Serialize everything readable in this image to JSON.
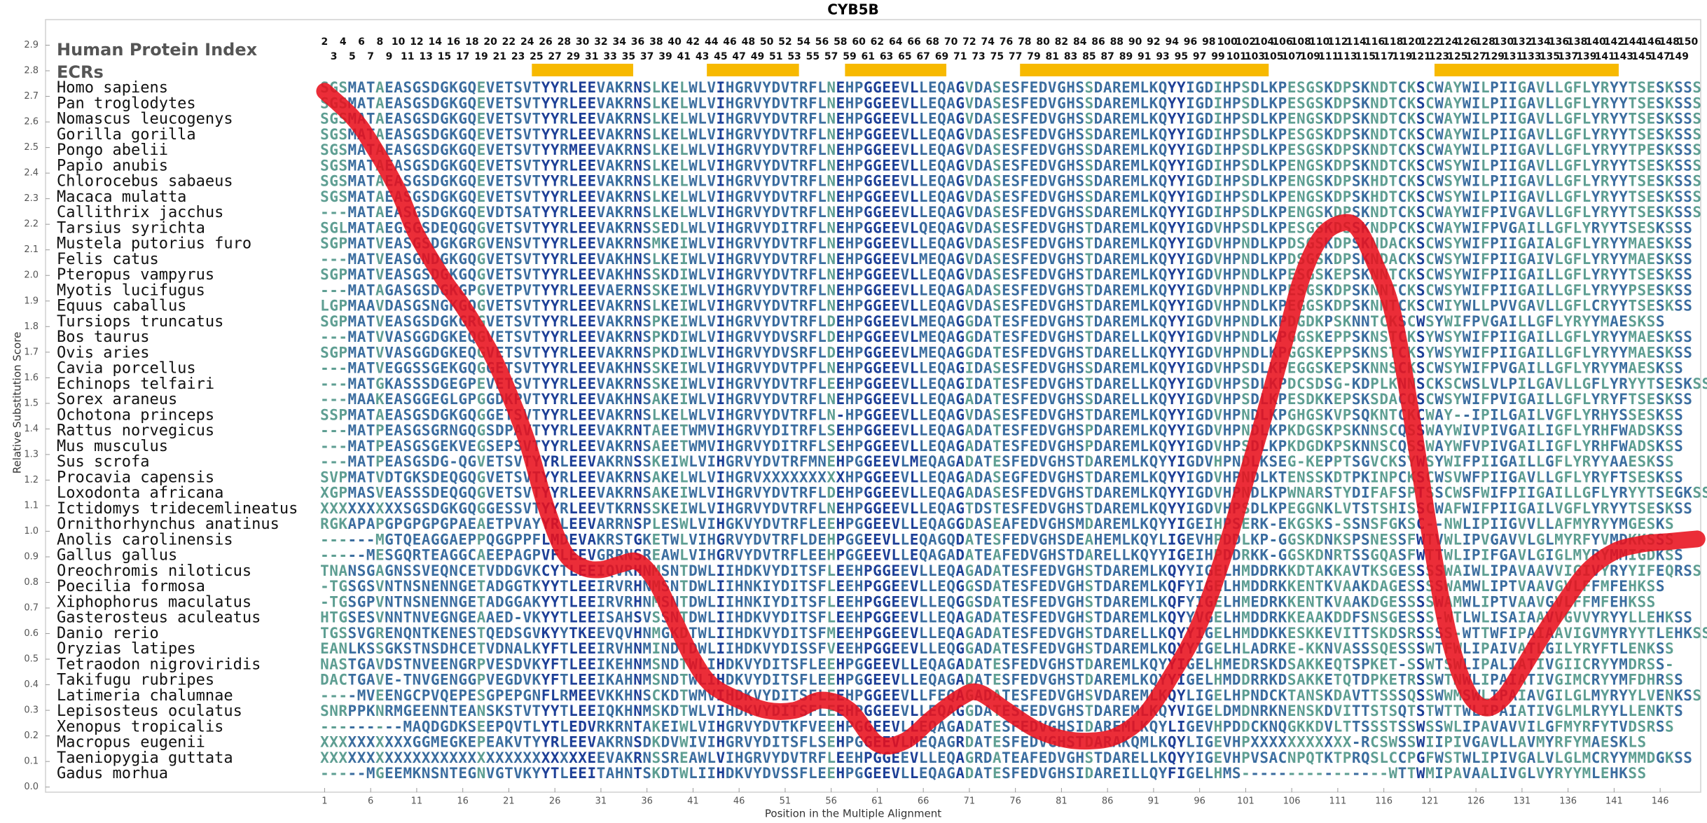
{
  "chart_data": {
    "type": "line",
    "title": "CYB5B",
    "xlabel": "Position in the Multiple Alignment",
    "ylabel": "Relative Substitution Score",
    "color": "#e8101c",
    "x": [
      1,
      4,
      6,
      9,
      11,
      14,
      16,
      19,
      21,
      23,
      25,
      27,
      29,
      31,
      33,
      35,
      37,
      39,
      41,
      43,
      46,
      49,
      52,
      55,
      58,
      61,
      64,
      67,
      70,
      72,
      75,
      78,
      81,
      84,
      87,
      90,
      93,
      96,
      99,
      101,
      103,
      105,
      107,
      109,
      111,
      113,
      115,
      117,
      119,
      121,
      123,
      125,
      127,
      129,
      131,
      133,
      135,
      138,
      141,
      144,
      147,
      150
    ],
    "values": [
      2.72,
      2.62,
      2.52,
      2.33,
      2.16,
      1.98,
      1.88,
      1.7,
      1.54,
      1.35,
      1.1,
      0.92,
      0.86,
      0.85,
      0.87,
      0.88,
      0.8,
      0.65,
      0.5,
      0.4,
      0.34,
      0.3,
      0.3,
      0.34,
      0.3,
      0.17,
      0.18,
      0.27,
      0.35,
      0.37,
      0.3,
      0.23,
      0.19,
      0.18,
      0.2,
      0.28,
      0.44,
      0.64,
      0.95,
      1.2,
      1.45,
      1.71,
      1.98,
      2.14,
      2.2,
      2.19,
      2.05,
      1.85,
      1.45,
      0.99,
      0.6,
      0.38,
      0.31,
      0.35,
      0.46,
      0.58,
      0.69,
      0.84,
      0.92,
      0.95,
      0.96,
      0.97
    ],
    "xlim": [
      -29.3,
      150.4
    ],
    "ylim": [
      -0.02,
      3.0
    ],
    "xticks": [
      1,
      6,
      11,
      16,
      21,
      26,
      31,
      36,
      41,
      46,
      51,
      56,
      61,
      66,
      71,
      76,
      81,
      86,
      91,
      96,
      101,
      106,
      111,
      116,
      121,
      126,
      131,
      136,
      141,
      146
    ],
    "yticks": [
      {
        "value": 0,
        "label": "0.0"
      },
      0.1,
      0.2,
      0.3,
      0.4,
      0.5,
      0.6,
      0.7,
      0.8,
      0.9,
      {
        "value": 1,
        "label": "1.0"
      },
      1.1,
      1.2,
      1.3,
      1.4,
      1.5,
      1.6,
      1.7,
      1.8,
      1.9,
      {
        "value": 2,
        "label": "2.0"
      },
      2.1,
      2.2,
      2.3,
      2.4,
      2.5,
      2.6,
      2.7,
      2.8,
      2.9
    ],
    "alignment": {
      "index_title": "Human Protein Index",
      "ecr_title": "ECRs",
      "ecr_color": "#f7b900",
      "ecrs": [
        [
          24,
          34
        ],
        [
          43,
          52
        ],
        [
          58,
          68
        ],
        [
          77,
          103
        ],
        [
          122,
          141
        ]
      ],
      "human_index_top": [
        2,
        4,
        6,
        8,
        10,
        12,
        14,
        16,
        18,
        20,
        22,
        24,
        26,
        28,
        30,
        32,
        34,
        36,
        38,
        40,
        42,
        44,
        46,
        48,
        50,
        52,
        54,
        56,
        58,
        60,
        62,
        64,
        66,
        68,
        70,
        72,
        74,
        76,
        78,
        80,
        82,
        84,
        86,
        88,
        90,
        92,
        94,
        96,
        98,
        100,
        102,
        104,
        106,
        108,
        110,
        112,
        114,
        116,
        118,
        120,
        122,
        124,
        126,
        128,
        130,
        132,
        134,
        136,
        138,
        140,
        142,
        144,
        146,
        148,
        150
      ],
      "human_index_bottom": [
        3,
        5,
        7,
        9,
        11,
        13,
        15,
        17,
        19,
        21,
        23,
        25,
        27,
        29,
        31,
        33,
        35,
        37,
        39,
        41,
        43,
        45,
        47,
        49,
        51,
        53,
        55,
        57,
        59,
        61,
        63,
        65,
        67,
        69,
        71,
        73,
        75,
        77,
        79,
        81,
        83,
        85,
        87,
        89,
        91,
        93,
        95,
        97,
        99,
        101,
        103,
        105,
        107,
        109,
        111,
        113,
        115,
        117,
        119,
        121,
        123,
        125,
        127,
        129,
        131,
        133,
        135,
        137,
        139,
        141,
        143,
        145,
        147,
        149
      ],
      "species": [
        "Homo sapiens",
        "Pan troglodytes",
        "Nomascus leucogenys",
        "Gorilla gorilla",
        "Pongo abelii",
        "Papio anubis",
        "Chlorocebus sabaeus",
        "Macaca mulatta",
        "Callithrix jacchus",
        "Tarsius syrichta",
        "Mustela putorius furo",
        "Felis catus",
        "Pteropus vampyrus",
        "Myotis lucifugus",
        "Equus caballus",
        "Tursiops truncatus",
        "Bos taurus",
        "Ovis aries",
        "Cavia porcellus",
        "Echinops telfairi",
        "Sorex araneus",
        "Ochotona princeps",
        "Rattus norvegicus",
        "Mus musculus",
        "Sus scrofa",
        "Procavia capensis",
        "Loxodonta africana",
        "Ictidomys tridecemlineatus",
        "Ornithorhynchus anatinus",
        "Anolis carolinensis",
        "Gallus gallus",
        "Oreochromis niloticus",
        "Poecilia formosa",
        "Xiphophorus maculatus",
        "Gasterosteus aculeatus",
        "Danio rerio",
        "Oryzias latipes",
        "Tetraodon nigroviridis",
        "Takifugu rubripes",
        "Latimeria chalumnae",
        "Lepisosteus oculatus",
        "Xenopus tropicalis",
        "Macropus eugenii",
        "Taeniopygia guttata",
        "Gadus morhua"
      ],
      "sequences": [
        "SGSMATAEASGSDGKGQEVETSVTYYRLEEVAKRNSLKELWLVIHGRVYDVTRFLNEHPGGEEVLLEQAGVDASESFEDVGHSSDAREMLKQYYIGDIHPSDLKPESGSKDPSKNDTCKSCWAYWILPIIGAVLLGFLYRYYTSESKSSS",
        "SGSMATAEASGSDGKGQEVETSVTYYRLEEVAKRNSLKELWLVIHGRVYDVTRFLNEHPGGEEVLLEQAGVDASESFEDVGHSSDAREMLKQYYIGDIHPSDLKPESGSKDPSKNDTCKSCWAYWILPIIGAVLLGFLYRYYTSESKSSS",
        "SGSMATAEASGSDGKGQEVETSVTYYRLEEVAKRNSLKELWLVIHGRVYDVTRFLNEHPGGEEVLLEQAGVDASESFEDVGHSSDAREMLKQYYIGDIHPSDLKPENGSKDPSKNDTCKSCWAYWILPIIGAVLLGFLYRYYTSESKSSS",
        "SGSMATAEASGSDGKGQEVETSVTYYRLEEVAKRNSLKELWLVIHGRVYDVTRFLNEHPGGEEVLLEQAGVDASESFEDVGHSSDAREMLKQYYIGDIHPSDLKPESGSKDPSKNDTCKSCWAYWILPIIGAVLLGFLYRYYTSESKSSS",
        "SGSMATAEASGSDGKGQEVETSVTYYRMEEVAKRNSLKELWLVIHGRVYDVTRFLNEHPGGEEVLLEQAGVDASESFEDVGHSSDAREMLKQYYIGDIHPSDLKPESGSKDPSKNDTCKSCWAYWILPIIGAVLLGFLYRYYTPESKSSS",
        "SGSMATAEASGSDGKGQEVETSVTYYRLEEVAKRNSLKELWLVIHGRVYDVTRFLNEHPGGEEVLLEQAGVDASESFEDVGHSSDAREMLKQYYIGDIHPSDLKPENGSKDPSKNDTCKSCWSYWILPIIGAVLLGFLYRYYTSESKSSS",
        "SGSMATAEASGSDGKGQEVETSVTYYRLEEVAKRNSLKELWLVIHGRVYDVTRFLNEHPGGEEVLLEQAGVDASESFEDVGHSSDAREMLKQYYIGDIHPSDLKPENGSKDPSKHDTCKSCWSYWILPIIGAVLLGFLYRYYTSESKSSS",
        "SGSMATAEASGSDGKGQEVETSVTYYRLEEVAKRNSLKELWLVIHGRVYDVTRFLNEHPGGEEVLLEQAGVDASESFEDVGHSSDAREMLKQYYIGDIHPSDLKPENGSKDPSKHDTCKSCWSYWILPIIGAVLLGFLYRYYTSESKSSS",
        "---MATAEASGSDGKGQEVDTSATYYRLEEVAKRNSLKELWLVIHGRVYDVTRFLNEHPGGEEVLLEQAGVDASESFEDVGHSSDAREMLKQYYIGDIHPSDLKPENGSKDPSKNDTCKSCWAYWIFPIVGAVLLGFLYRYYTSESKSSS",
        "SGLMATAEGSGSDEQGQGVETSVTYYRLEEVAKRNSSEDLWLVIHGRVYDITRFLNEHPGGEEVLQEQAGVDASESFEDVGHSTDAREMLKQYYIGDVHPSDLKPESGSKDSSKNDPCKSCWAYWIFPVGAILLGFLYRYYTSESKSSS",
        "SGPMATVEASGSDGKGRGVENSVTYYRLEEVAKRNSMKEIWLVIHGRVYDVTRFLNEHPGGEEVLLEQAGVDASESFEDVGHSTDAREMLKQYYIGDVHPNDLKPDSGSKDPSKNDACKSCWSYWIFPIIGAIALGFLYRYYMAESKSS",
        "---MATVEASGNDGKGQGVETSVTYYRLEEVAKHNSLKEIWLVIHGRVYDVTRFLNEHPGGEEVLMEQAGVDASESFEDVGHSTDAREMLKQYYIGDVHPNDLKPDSGSKDPSKNDACKSCWSYWIFPIIGAIVLGFLYRYYMAESKSS",
        "SGPMATVEASGSDGKGQGVETSVTYYRLEEVAKHNSSKDIWLVIHGRVYDVTRFLNEHPGGEEVLLEQAGVDASESFEDVGHSTDAREMLKQYYIGDVHPNDLKPESGSKEPSKNNTCKSCWSYWIFPIIGAILLGFLYRYYTSESKSS",
        "---MATAGASGSDGKGPGVETPVTYYRLEEVAERNSSKEIWLVIHGRVYDVTRFLNEHPGGEEVLLEQAGADASESFEDVGHSTDAREMLKQYYIGDVHPNDLKPESGSKDPSKNNTCKSCWSYWIFPIIGAILLGFLYRYYPSESKSS",
        "LGPMAAVDASGSNGKGQGVETSVTYYRLEEVAKRNSLKEIWLVIHGRVYDVTRFLNEHPGGEEVLLEQAGVDASESFEDVGHSTDAREMLKQYYIGDVHPNDLKPEGGSKDPSKNNTCKSCWIYWLLPVVGAVLLGFLCRYYTSESKSS",
        "SGPMATVEASGSDGKGRGVETSVTYYRLEEVAKRNSPKEIWLVIHGRVYDVTRFLDEHPGGEEVLMEQAGGDATESFEDVGHSTDAREMLKQYYIGDVHPNDLKPDGDKPSKNNTCKSCWSYWIFPVGAILLGFLYRYYMAESKSS",
        "---MATVVASGGDGKEQGVETSVTYYRLEEVAKRNSPKDIWLVIHGRVYDVSRFLDEHPGGEEVLMEQAGGDATESFEDVGHSTDARELLKQYYIGDVHPNDLKPGGSKEPPSKNSTCKSYWSYWIFPIIGAILLGFLYRYYMAESKSS",
        "SGPMATVVASGGDGKEQGVETSVTYYRLEEVAKRNSPKDIWLVIHGRVYDVSRFLDEHPGGEEVLMEQAGGDATESFEDVGHSTDARELLKQYYIGDVHPNDLKPGGSKEPPSKNSTCKSYWSYWIFPIIGAILLGFLYRYYMAESKSS",
        "---MATVEGGSSGEKGQGGETSVTYYRLEEVAKHNSSKEIWLVIHGRVYDVTPFLNEHPGGEEVLLEQAGIDASESFEDVGHSSDAREMLKQYYIGDVHPSDLKPEGGSKEPSKNNSCKSCWSYWIFPVGAILLGFLYRYYMAESKSS",
        "---MATGKASSSDGEGPEVETSVTYYRLEEVAKRNSSKEIWLVIHGRVYDVTRFLEEHPGGEEVLLEQAGIDATESFEDVGHSTDARELLKQYYIGDVHPSDLKPDCSDSG-KDPLKNNSCKSCWSLVLPILGAVLLGFLYRYYTSESKSS",
        "---MAAKEASGGEGLGPGGDKPVTYYRLEEVAKHNSAKEIWLVIHGRVYDVTRFLNEHPGGEEVLLEQAGADATESFEDVGHSSDARELLKQYYIGDVHPSDLKPESDKKEPSKSDACQSCWSYWIFPVIGAILLGFLYRYFTSESKSS",
        "SSPMATAEASGSDGKGQGGETSVTYYRLEEVAKRNSLKELWLVIHGRVYDVTRFLN-HPGGEEVLLEQAGVDASESFEDVGHSTDAREMLKQYYIGDVHPNDLKPGHGSKVPSQKNTCKCWAY--IPILGAILVGFLYRHYSSESKSS",
        "---MATPEASGSGRNGQGSDPAVTYYRLEEVAKRNTAEETWMVIHGRVYDITRFLSEHPGGEEVLLEQAGADATESFEDVGHSPDAREMLKQYYIGDVHPNDLKPKDGSKPSKNNSCQSSWAYWIVPIVGAILIGFLYRHFWADSKSS",
        "---MATPEASGSGEKVEGSEPSVTYYRLEEVAKRNSAEETWMVIHGRVYDITRFLSEHPGGEEVLLEQAGADATESFEDVGHSPDAREMLKQYYIGDVHPSDLKPKDGDKPSKNNSCQSSWAYWFVPIVGAILIGFLYRHFWADSKSS",
        "---MATPEASGSDG-QGVETSVTYYRLEEVAKRNSSKEIWLVIHGRVYDVTRFMNEHPGGEEVLMEQAGADATESFEDVGHSTDAREMLKQYYIGDVHPNDLKSEG-KEPPTSGVCKSYWSYWIFPIIGAILLGFLYRYYAAESKSS",
        "SVPMATVDTGKSDEQGQGVETSVTYYRLEEVAKRNSAKELWLVIHGRVXXXXXXXXXHPGGEEVLLEQAGADASEGFEDVGHSTDAREMLKQYYIGDVHPNDLKTENSSKDTPKINPCKSCWSVWFPIIGAVLLGFLYRYFTSESKSS",
        "XGPMASVEASSSDEQGQGVETSVTYYRLEEVAKRNSAKEIWLVIHGRVYDVTRFLDEHPGGEEVLLEQAGADASESFEDVGHSTDAREMLKQYYIGDVHPNDLKPWNARSTYDIFAFSPTSSCWSFWIFPIIGAILLGFLYRYYTSEGKSS",
        "XXXXXXXXXSGSDGKGQGGESSVTYYRLEEVTKRNSSKEIWLVIHGRVYDVTRFLNEHPGGEEVLLEQAGTDSTESFEDVGHSTDAREMLKQYYIGDVHPSDLKPEGGNKLVTSTSHISSCWAFWIFPIIGAILVGFLYRYYTSESKSS",
        "RGKAPAPGPGPGPGPAEAETPVAYYRLEEVARRNSPLESWLVIHGKVYDVTRFLEEHPGGEEVLLEQAGGDASEAFEDVGHSMDAREMLKQYYIGEIHPSERK-EKGSKS-SSNSFGKSC--NWLIPIIGVVLLAFMYRYYMGESKS",
        "------MGTQEAGGAEPPQGGPPFLMDEVAKRSTGKETWLVIHGRVYDVTRFLDEHPGGEEVLLEQAGQDATESFEDVGHSDEAHEMLKQYLIGEVHPDDLKP-GGSKDNKSPSNESSFWTVWLIPVGAVVLGLMYRFYVMDKKSSS",
        "-----MESGQRTEAGGCAEEPAGPVFLEEVGRRNSREAWLVIHGRVYDVTRFLEEHPGGEEVLLEQAGADATEAFEDVGHSTDARELLKQYYIGEIHPDDRKK-GGSKDNRTSSGQASFWTTWLIPIFGAVLGIGLMYRYMMIGDKSS",
        "TNANSGAGNSSVEQNCETVDDGVKCYTLEEIQVRHNMSNTDWLIIHDKVYDITSFLEEHPGGEEVLLEQAGADATESFEDVGHSTDAREMLKQYYIGELHMDDRKKDTAKKAVTKSGESSSSWAIWLIPAVAAVVIGIVYRYYIFEQRSS",
        "-TGSGSVNTNSNENNGETADGGTKYYTLEEIRVRHNMSNTDWLIIHNKIYDITSFLEEHPGGEEVLLEQGGSDATESFEDVGHSTDAREMLKQFYIGELHMDDRKKENTKVAAKDAGESSSSWAMWLIPTVAAVGVLFFMFEHKSS",
        "-TGSGPVNTNSNENNGETADGGAKYYTLEEIRVRHNMSNTDWLIIHNKIYDITSFLEEHPGGEEVLLEQGGSDATESFEDVGHSTDAREMLKQFYIGELHMEDRKKENTKVAAKDGESSSSWAMWLIPTVAAVGVLFFMFEHKSS",
        "HTGSESVNNTNVEGNGEAAED-VKYYTLEEISAHSVSSNTDWLIIHDKVYDITSFLEEHPGGEEVLLEQAGADATESFEDVGHSTDAREMLKQYYVGELHMDDRKKEAAKDDFSNSGESSS-WTLWLISAIAAVVGVVYRYYLLEHKSS",
        "TGSSVGRENQNTKENESTQEDSGVKYYTKEEVQVHNMGKDTWLIIHDKVYDITSFMEEHPGGEEVLLEQAGADATESFEDVGHSTDARELLKQYYIGELHMDDKKESKKEVITTSKDSRSSSS-WTTWFIPAIAAVIGVMYRYYTLEHKSS",
        "EANLKSSGKSTNSDHCETVDNALKYFTLEEIRVHNMINDTDWLIIHDKVYDISSFVEEHPGGEEVLLEQGGADATESFEDVGHSTDAREMLKQYYIGELHLADRKE-KKNVASSSQESSSWTFWLIPAIVATLGILYRYFTLENKSS",
        "NASTGAVDSTNVEENGRPVESDVKYFTLEEIKEHNMSNDTWLIHDKVYDITSFLEEHPGGEEVLLEQAGADATESFEDVGHSTDAREMLKQYYIGELHMEDRSKDSAKKEQTSPKET-SSWTSWLIPALIATIVGIICRYYMDRSS-",
        "DACTGAVE-TNVGENGGPVEGDVKYFTLEEIKAHNMSNDTWLIHDKVYDITSFLEEHPGGEEVLLEQAGADATESFEDVGHSTDAREMLKQYYIGELHMDDRRKDSAKKETQTDPKETRSSWTNWLIPAIATIVGIMCRYYMFDHRSS",
        "----MVEENGCPVQEPESGPEPGNFLRMEEVKKHNSCKDTWMVIHDKVYDITSFLEEHPGGEEVLLFEQAGADATESFEDVGHSVDAREMLKQYLIGELHPNDCKTANSKDAVTTSSSQSSWWMSWLIPAIAVGILGLMYRYYLVENKSS",
        "SNRPPKNRMGEENNTEANSKSTVTYYTLEEIQKHNMSKDTWLVIHDKVYDITSFLEEHPGGEEVLLEQAGGDATESFEDVGHSTDAREMLKQYVIGELDMDNRKNENSKDVITTSTSQTSTWTTWLIPAIATIVGLMLRYYLLENKTS",
        "---------MAQDGDKSEEPQVTLYTLEDVRKRNTAKEIWLVIHGRVYDVTKFVEEHPGGEEVLLEQAGADATESFEDVGHSIDAREMLKQYLIGEVHPDDCKNQGKKDVLTTSSSTSSWSSWLIPAVAVVILGFMYRFYTVDSRSS",
        "XXXXXXXXXXGGMEGKEPEAKVTYYRLEEVAKRNSDKDVWIVIHGRVYDITSFLSEHPGGEEVLMEQAGRDATESFEDVGHSTDARAKQMLKQYLIGEVHPXXXXXXXXXXX-RCSWSSWIIPIVGAVLLAVMYRFYMAESKLS",
        "XXXXXXXXXXXXXXXXXXXXXXXXXXXXXEEVAKRNSSREAWLVIHGRVYDVTRFLEEHPGGEEVLLEQAGRDATEAFEDVGHSTDARELLKQYYIGEVHPVSACNPQTKTPRQSLCCPGFWSTWLIPIVGALVLGLMCRYYMMDGKSS",
        "-----MGEEMKNSNTEGNVGTVKYYTLEEITAHNTSKDTWLIIHDKVYDVSSFLEEHPGGEEVLLEQAGADATESFEDVGHSIDAREILLQYFIGELHMS----------------WTTWMIPAVAALIVGLVYRYYMLEHKSS"
      ]
    }
  }
}
